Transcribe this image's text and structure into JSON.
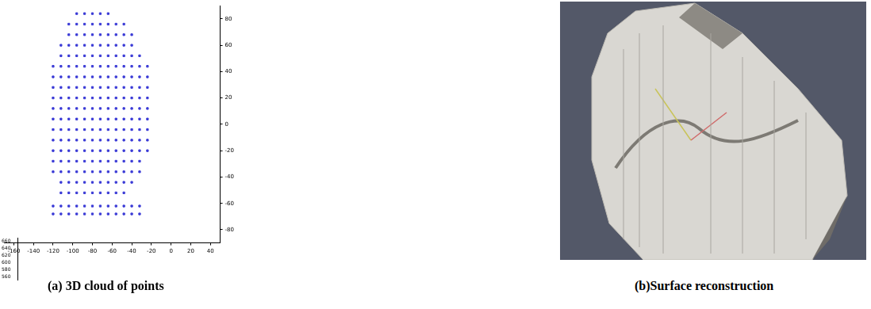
{
  "chart_data": {
    "type": "scatter",
    "color": "#3b3bd6",
    "marker": "square",
    "grid": false,
    "xlim": [
      -170,
      50
    ],
    "xticks": [
      -160,
      -140,
      -120,
      -100,
      -80,
      -60,
      -40,
      -20,
      0,
      20,
      40
    ],
    "ylim": [
      -90,
      90
    ],
    "yticks": [
      -80,
      -60,
      -40,
      -20,
      0,
      20,
      40,
      60,
      80
    ],
    "zticks": [
      560,
      580,
      600,
      620,
      640,
      660
    ],
    "x": [
      -120,
      -120,
      -120,
      -120,
      -120,
      -120,
      -120,
      -120,
      -120,
      -120,
      -120,
      -112,
      -112,
      -112,
      -112,
      -112,
      -112,
      -112,
      -112,
      -112,
      -112,
      -112,
      -112,
      -112,
      -112,
      -112,
      -104,
      -104,
      -104,
      -104,
      -104,
      -104,
      -104,
      -104,
      -104,
      -104,
      -104,
      -104,
      -104,
      -104,
      -104,
      -104,
      -104,
      -96,
      -96,
      -96,
      -96,
      -96,
      -96,
      -96,
      -96,
      -96,
      -96,
      -96,
      -96,
      -96,
      -96,
      -96,
      -96,
      -96,
      -96,
      -88,
      -88,
      -88,
      -88,
      -88,
      -88,
      -88,
      -88,
      -88,
      -88,
      -88,
      -88,
      -88,
      -88,
      -88,
      -88,
      -88,
      -88,
      -80,
      -80,
      -80,
      -80,
      -80,
      -80,
      -80,
      -80,
      -80,
      -80,
      -80,
      -80,
      -80,
      -80,
      -80,
      -80,
      -80,
      -80,
      -72,
      -72,
      -72,
      -72,
      -72,
      -72,
      -72,
      -72,
      -72,
      -72,
      -72,
      -72,
      -72,
      -72,
      -72,
      -72,
      -72,
      -72,
      -64,
      -64,
      -64,
      -64,
      -64,
      -64,
      -64,
      -64,
      -64,
      -64,
      -64,
      -64,
      -64,
      -64,
      -64,
      -64,
      -64,
      -64,
      -56,
      -56,
      -56,
      -56,
      -56,
      -56,
      -56,
      -56,
      -56,
      -56,
      -56,
      -56,
      -56,
      -56,
      -56,
      -56,
      -56,
      -48,
      -48,
      -48,
      -48,
      -48,
      -48,
      -48,
      -48,
      -48,
      -48,
      -48,
      -48,
      -48,
      -48,
      -48,
      -48,
      -48,
      -40,
      -40,
      -40,
      -40,
      -40,
      -40,
      -40,
      -40,
      -40,
      -40,
      -40,
      -40,
      -40,
      -40,
      -40,
      -32,
      -32,
      -32,
      -32,
      -32,
      -32,
      -32,
      -32,
      -32,
      -32,
      -32,
      -32,
      -24,
      -24,
      -24,
      -24,
      -24,
      -24,
      -24,
      -24,
      -24,
      -120,
      -112,
      -104,
      -96,
      -88,
      -80,
      -72,
      -64,
      -56,
      -48,
      -40,
      -32,
      -120,
      -112,
      -104,
      -96,
      -88,
      -80,
      -72,
      -64,
      -56,
      -48,
      -40,
      -32
    ],
    "values": [
      -36,
      -28,
      -20,
      -12,
      -4,
      4,
      12,
      20,
      28,
      36,
      44,
      -52,
      -44,
      -36,
      -28,
      -20,
      -12,
      -4,
      4,
      12,
      20,
      28,
      36,
      44,
      52,
      60,
      -52,
      -44,
      -36,
      -28,
      -20,
      -12,
      -4,
      4,
      12,
      20,
      28,
      36,
      44,
      52,
      60,
      68,
      76,
      -52,
      -44,
      -36,
      -28,
      -20,
      -12,
      -4,
      4,
      12,
      20,
      28,
      36,
      44,
      52,
      60,
      68,
      76,
      84,
      -52,
      -44,
      -36,
      -28,
      -20,
      -12,
      -4,
      4,
      12,
      20,
      28,
      36,
      44,
      52,
      60,
      68,
      76,
      84,
      -52,
      -44,
      -36,
      -28,
      -20,
      -12,
      -4,
      4,
      12,
      20,
      28,
      36,
      44,
      52,
      60,
      68,
      76,
      84,
      -52,
      -44,
      -36,
      -28,
      -20,
      -12,
      -4,
      4,
      12,
      20,
      28,
      36,
      44,
      52,
      60,
      68,
      76,
      84,
      -52,
      -44,
      -36,
      -28,
      -20,
      -12,
      -4,
      4,
      12,
      20,
      28,
      36,
      44,
      52,
      60,
      68,
      76,
      84,
      -52,
      -44,
      -36,
      -28,
      -20,
      -12,
      -4,
      4,
      12,
      20,
      28,
      36,
      44,
      52,
      60,
      68,
      76,
      -52,
      -44,
      -36,
      -28,
      -20,
      -12,
      -4,
      4,
      12,
      20,
      28,
      36,
      44,
      52,
      60,
      68,
      76,
      -44,
      -36,
      -28,
      -20,
      -12,
      -4,
      4,
      12,
      20,
      28,
      36,
      44,
      52,
      60,
      68,
      -36,
      -28,
      -20,
      -12,
      -4,
      4,
      12,
      20,
      28,
      36,
      44,
      52,
      -20,
      -12,
      -4,
      4,
      12,
      20,
      28,
      36,
      44,
      -62,
      -62,
      -62,
      -62,
      -62,
      -62,
      -62,
      -62,
      -62,
      -62,
      -62,
      -62,
      -68,
      -68,
      -68,
      -68,
      -68,
      -68,
      -68,
      -68,
      -68,
      -68,
      -68,
      -68
    ]
  },
  "panels": {
    "a": {
      "caption": "(a) 3D cloud of points"
    },
    "b": {
      "caption": "(b)Surface reconstruction"
    }
  }
}
